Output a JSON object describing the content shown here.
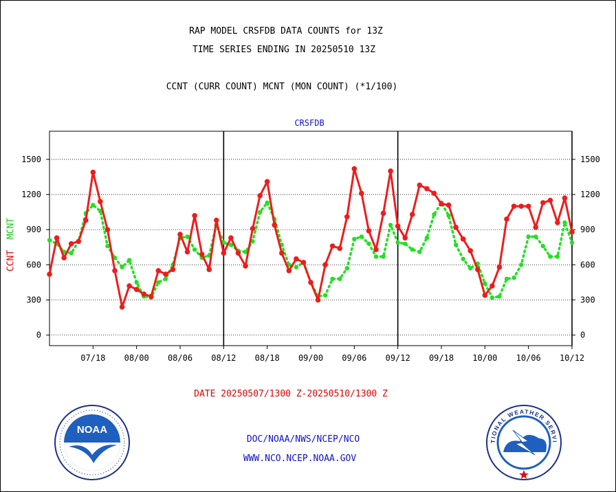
{
  "header": {
    "title_line1": "RAP MODEL CRSFDB DATA COUNTS for 13Z",
    "title_line2": "TIME SERIES ENDING IN 20250510 13Z",
    "subtitle": "CCNT (CURR COUNT) MCNT (MON COUNT) (*1/100)"
  },
  "footer": {
    "date_range": "DATE 20250507/1300 Z-20250510/1300 Z",
    "credit_line1": "DOC/NOAA/NWS/NCEP/NCO",
    "credit_line2": "WWW.NCO.NCEP.NOAA.GOV"
  },
  "logos": {
    "noaa_text": "NOAA",
    "nws_text": "NATIONAL WEATHER SERVICE"
  },
  "colors": {
    "ccnt": "#ee1c1c",
    "mcnt": "#22e022",
    "text": "#000000",
    "blue": "#1010c8"
  },
  "chart_data": {
    "type": "line",
    "title": "CRSFDB",
    "ylabel_parts": [
      "CCNT",
      "MCNT"
    ],
    "ylim": [
      -90,
      1740
    ],
    "yticks": [
      0,
      300,
      600,
      900,
      1200,
      1500
    ],
    "xtick_labels": [
      "07/18",
      "08/00",
      "08/06",
      "08/12",
      "08/18",
      "09/00",
      "09/06",
      "09/12",
      "09/18",
      "10/00",
      "10/06",
      "10/12"
    ],
    "grid": true,
    "series": [
      {
        "name": "CCNT",
        "style": "solid",
        "values": [
          520,
          830,
          660,
          780,
          800,
          980,
          1390,
          1140,
          900,
          550,
          240,
          420,
          390,
          350,
          330,
          550,
          520,
          560,
          860,
          710,
          1020,
          690,
          560,
          980,
          700,
          830,
          700,
          590,
          910,
          1190,
          1310,
          940,
          700,
          550,
          650,
          620,
          450,
          300,
          600,
          760,
          740,
          1010,
          1420,
          1210,
          890,
          730,
          1040,
          1400,
          930,
          830,
          1030,
          1280,
          1250,
          1210,
          1120,
          1110,
          920,
          820,
          720,
          560,
          340,
          420,
          580,
          990,
          1100,
          1100,
          1100,
          920,
          1130,
          1150,
          960,
          1170,
          880
        ]
      },
      {
        "name": "MCNT",
        "style": "dotted",
        "values": [
          810,
          780,
          710,
          700,
          800,
          1040,
          1110,
          1060,
          760,
          660,
          580,
          640,
          450,
          330,
          320,
          450,
          480,
          600,
          830,
          840,
          730,
          660,
          680,
          940,
          790,
          770,
          720,
          710,
          800,
          1050,
          1130,
          990,
          770,
          600,
          580,
          620,
          450,
          330,
          340,
          480,
          480,
          570,
          820,
          840,
          780,
          670,
          670,
          940,
          790,
          780,
          730,
          710,
          830,
          1030,
          1130,
          1020,
          770,
          650,
          570,
          610,
          440,
          320,
          330,
          480,
          490,
          600,
          840,
          840,
          760,
          670,
          670,
          960,
          790
        ]
      }
    ]
  }
}
